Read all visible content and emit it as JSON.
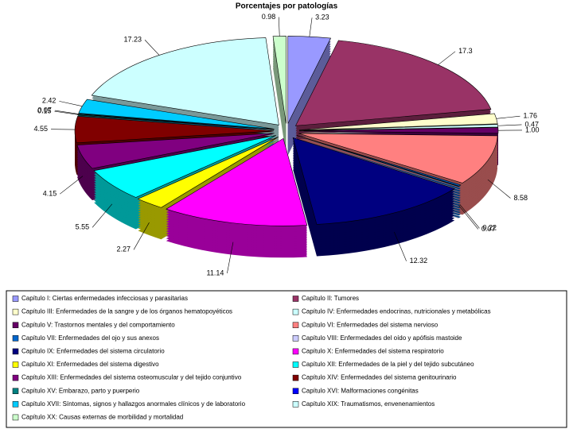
{
  "chart_data": {
    "type": "pie",
    "title": "Porcentajes por patologías",
    "categories": [
      "Capítulo I: Ciertas enfermedades infecciosas y parasitarias",
      "Capítulo II: Tumores",
      "Capítulo III: Enfermedades de la sangre y de los órganos hematopoyéticos",
      "Capítulo IV: Enfermedades endocrinas, nutricionales y metabólicas",
      "Capítulo V: Trastornos mentales y del comportamiento",
      "Capítulo VI: Enfermedades del sistema nervioso",
      "Capítulo VII: Enfermedades del ojo y sus anexos",
      "Capítulo VIII: Enfermedades del oído y apófisis mastoide",
      "Capítulo IX: Enfermedades del sistema circulatorio",
      "Capítulo X: Enfermedades del sistema respiratorio",
      "Capítulo XI: Enfermedades del sistema digestivo",
      "Capítulo XII: Enfermedades de la piel y del tejido subcutáneo",
      "Capítulo XIII: Enfermedades del sistema osteomuscular y del tejido conjuntivo",
      "Capítulo XIV: Enfermedades del sistema genitourinario",
      "Capítulo XV: Embarazo, parto y puerperio",
      "Capítulo XVI: Malformaciones congénitas",
      "Capítulo XVII: Síntomas, signos y hallazgos anormales clínicos y de laboratorio",
      "Capítulo XIX: Traumatismos, envenenamientos",
      "Capítulo XX: Causas externas de morbilidad y mortalidad"
    ],
    "values": [
      3.23,
      17.3,
      1.76,
      0.47,
      1.0,
      8.58,
      0.22,
      0.07,
      12.32,
      11.14,
      2.27,
      5.55,
      4.15,
      4.55,
      0.15,
      0.07,
      2.42,
      17.23,
      0.98
    ],
    "value_labels": [
      "3.23",
      "17.3",
      "1.76",
      "0.47",
      "1.00",
      "8.58",
      "0.22",
      "0.07",
      "12.32",
      "11.14",
      "2.27",
      "5.55",
      "4.15",
      "4.55",
      "0.15",
      "0.07",
      "2.42",
      "17.23",
      "0.98"
    ],
    "colors": [
      "#9999ff",
      "#993366",
      "#ffffcc",
      "#ccffff",
      "#660066",
      "#ff8080",
      "#0066cc",
      "#ccccff",
      "#000080",
      "#ff00ff",
      "#ffff00",
      "#00ffff",
      "#800080",
      "#800000",
      "#008080",
      "#0000ff",
      "#00ccff",
      "#ccffff",
      "#ccffcc"
    ]
  }
}
